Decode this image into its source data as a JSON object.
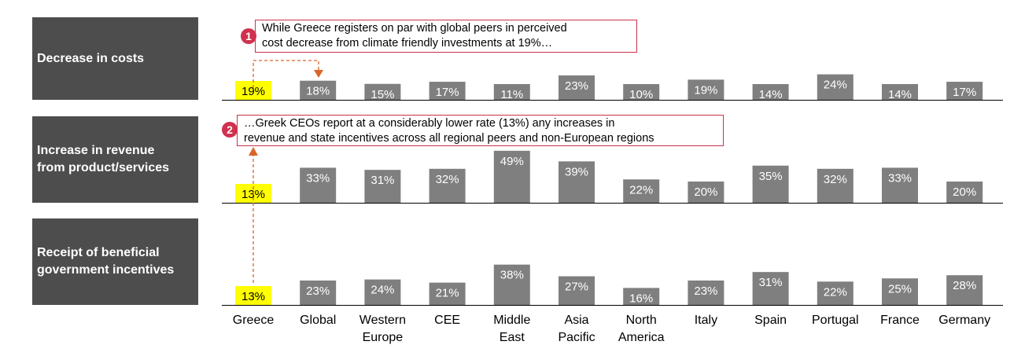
{
  "chart_data": {
    "type": "bar",
    "categories": [
      "Greece",
      "Global",
      "Western\nEurope",
      "CEE",
      "Middle\nEast",
      "Asia\nPacific",
      "North\nAmerica",
      "Italy",
      "Spain",
      "Portugal",
      "France",
      "Germany"
    ],
    "series": [
      {
        "name": "Decrease in costs",
        "values": [
          19,
          18,
          15,
          17,
          11,
          23,
          10,
          19,
          14,
          24,
          14,
          17
        ]
      },
      {
        "name": "Increase in revenue from product/services",
        "values": [
          13,
          33,
          31,
          32,
          49,
          39,
          22,
          20,
          35,
          32,
          33,
          20
        ]
      },
      {
        "name": "Receipt of beneficial government incentives",
        "values": [
          13,
          23,
          24,
          21,
          38,
          27,
          16,
          23,
          31,
          22,
          25,
          28
        ]
      }
    ],
    "value_suffix": "%",
    "highlight_category": "Greece"
  },
  "row_labels": [
    [
      "Decrease in costs"
    ],
    [
      "Increase in revenue",
      "from product/services"
    ],
    [
      "Receipt of beneficial",
      "government incentives"
    ]
  ],
  "callouts": [
    {
      "number": "1",
      "lines": [
        "While Greece registers on par with global peers in perceived",
        "cost decrease from climate friendly investments at 19%…"
      ]
    },
    {
      "number": "2",
      "lines": [
        "…Greek CEOs report at a considerably lower rate (13%) any increases in",
        "revenue and state incentives across all regional peers and non-European regions"
      ]
    }
  ],
  "colors": {
    "bar": "#7f7f7f",
    "highlight": "#ffff00",
    "label_box": "#4d4d4d",
    "callout_border": "#c8324a",
    "badge": "#d0314f",
    "arrow": "#d9652b"
  }
}
